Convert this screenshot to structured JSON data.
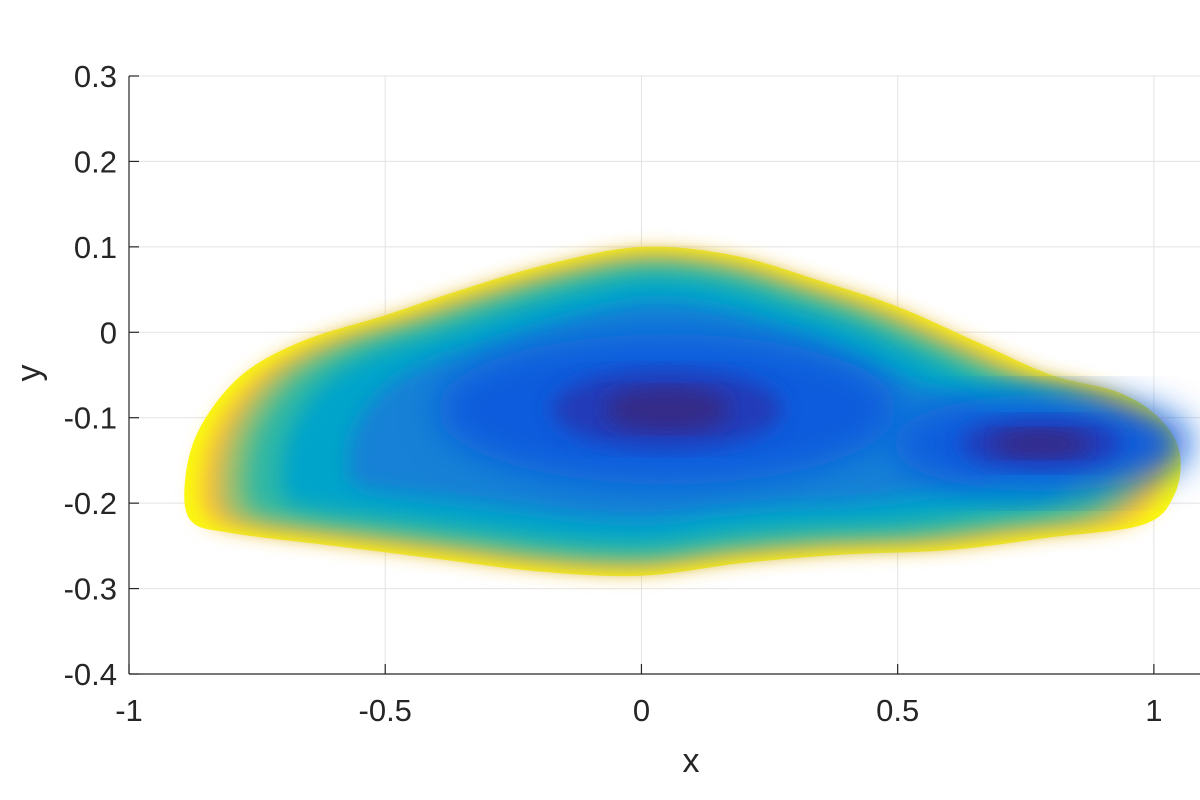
{
  "chart_data": {
    "type": "filled-contour",
    "xlabel": "x",
    "ylabel": "y",
    "xlim": [
      -1,
      1.09
    ],
    "ylim": [
      -0.4,
      0.3
    ],
    "xticks": [
      -1,
      -0.5,
      0,
      0.5,
      1
    ],
    "xtick_labels": [
      "-1",
      "-0.5",
      "0",
      "0.5",
      "1"
    ],
    "yticks": [
      -0.4,
      -0.3,
      -0.2,
      -0.1,
      0,
      0.1,
      0.2,
      0.3
    ],
    "ytick_labels": [
      "-0.4",
      "-0.3",
      "-0.2",
      "-0.1",
      "0",
      "0.1",
      "0.2",
      "0.3"
    ],
    "grid": true,
    "colormap": "parula",
    "colors": [
      "#352a87",
      "#0f5cdd",
      "#1481d6",
      "#06a4ca",
      "#2eb7a4",
      "#87bf77",
      "#d1bb59",
      "#fec832",
      "#f9fb0e"
    ],
    "region_outline": [
      [
        -0.88,
        -0.22
      ],
      [
        -0.89,
        -0.17
      ],
      [
        -0.86,
        -0.11
      ],
      [
        -0.78,
        -0.05
      ],
      [
        -0.66,
        -0.01
      ],
      [
        -0.5,
        0.02
      ],
      [
        -0.35,
        0.05
      ],
      [
        -0.18,
        0.08
      ],
      [
        0.0,
        0.1
      ],
      [
        0.18,
        0.09
      ],
      [
        0.35,
        0.06
      ],
      [
        0.5,
        0.03
      ],
      [
        0.65,
        -0.01
      ],
      [
        0.8,
        -0.05
      ],
      [
        0.93,
        -0.07
      ],
      [
        1.01,
        -0.1
      ],
      [
        1.05,
        -0.14
      ],
      [
        1.04,
        -0.19
      ],
      [
        0.98,
        -0.225
      ],
      [
        0.8,
        -0.24
      ],
      [
        0.6,
        -0.255
      ],
      [
        0.4,
        -0.26
      ],
      [
        0.2,
        -0.27
      ],
      [
        0.0,
        -0.285
      ],
      [
        -0.2,
        -0.28
      ],
      [
        -0.4,
        -0.265
      ],
      [
        -0.6,
        -0.25
      ],
      [
        -0.8,
        -0.235
      ]
    ],
    "minima": [
      {
        "x": 0.05,
        "y": -0.09
      },
      {
        "x": 0.78,
        "y": -0.13
      }
    ]
  }
}
